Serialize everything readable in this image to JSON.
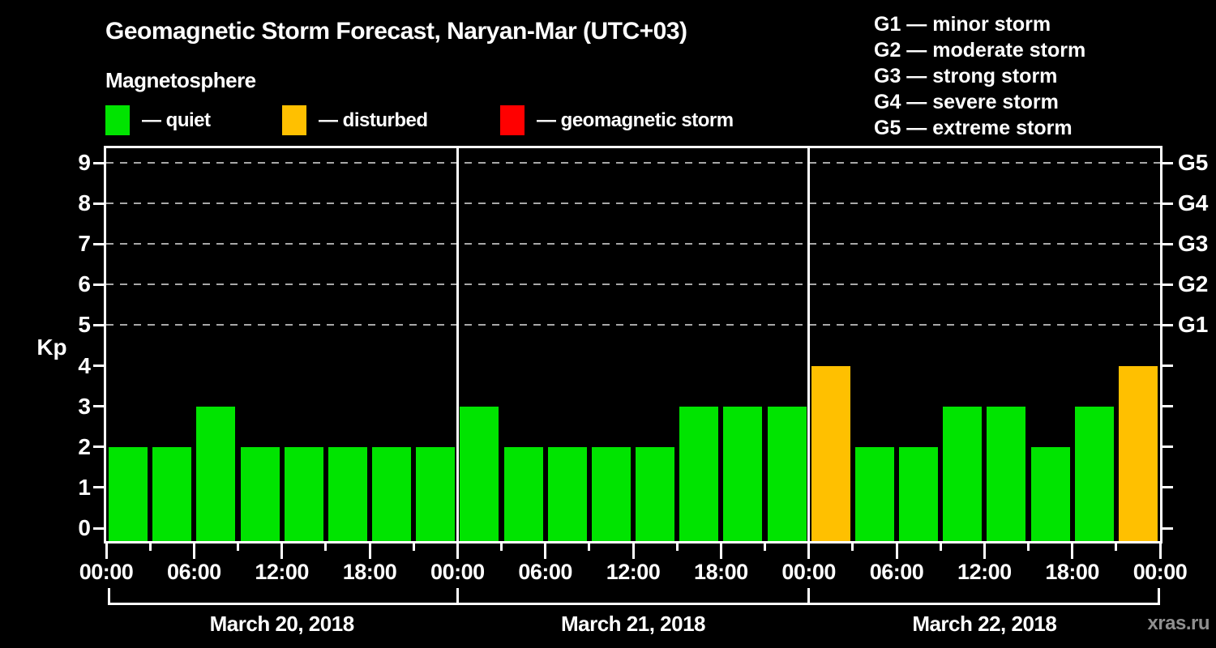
{
  "title": "Geomagnetic Storm Forecast, Naryan-Mar (UTC+03)",
  "subtitle": "Magnetosphere",
  "watermark": "xras.ru",
  "legend": {
    "items": [
      {
        "name": "quiet",
        "label": "— quiet",
        "color": "#00e400"
      },
      {
        "name": "disturbed",
        "label": "— disturbed",
        "color": "#ffc000"
      },
      {
        "name": "geomagnetic-storm",
        "label": "— geomagnetic storm",
        "color": "#ff0000"
      }
    ]
  },
  "storm_scale_legend": {
    "items": [
      "G1 — minor storm",
      "G2 — moderate storm",
      "G3 — strong storm",
      "G4 — severe storm",
      "G5 — extreme storm"
    ]
  },
  "chart_data": {
    "type": "bar",
    "title": "Geomagnetic Storm Forecast, Naryan-Mar (UTC+03)",
    "ylabel": "Kp",
    "ylim": [
      0,
      9
    ],
    "yticks": [
      0,
      1,
      2,
      3,
      4,
      5,
      6,
      7,
      8,
      9
    ],
    "gridlines_at": [
      5,
      6,
      7,
      8,
      9
    ],
    "grid": "dashed-horizontal",
    "legend_position": "top",
    "right_axis_labels": [
      {
        "label": "G1",
        "kp": 5
      },
      {
        "label": "G2",
        "kp": 6
      },
      {
        "label": "G3",
        "kp": 7
      },
      {
        "label": "G4",
        "kp": 8
      },
      {
        "label": "G5",
        "kp": 9
      }
    ],
    "hours_per_bar": 3,
    "x_tick_labels": [
      "00:00",
      "06:00",
      "12:00",
      "18:00",
      "00:00",
      "06:00",
      "12:00",
      "18:00",
      "00:00",
      "06:00",
      "12:00",
      "18:00",
      "00:00"
    ],
    "bar_colors": {
      "quiet": "#00e400",
      "disturbed": "#ffc000",
      "storm": "#ff0000"
    },
    "days": [
      {
        "date": "March 20, 2018",
        "values": [
          2,
          2,
          3,
          2,
          2,
          2,
          2,
          2
        ],
        "conditions": [
          "quiet",
          "quiet",
          "quiet",
          "quiet",
          "quiet",
          "quiet",
          "quiet",
          "quiet"
        ]
      },
      {
        "date": "March 21, 2018",
        "values": [
          3,
          2,
          2,
          2,
          2,
          3,
          3,
          3
        ],
        "conditions": [
          "quiet",
          "quiet",
          "quiet",
          "quiet",
          "quiet",
          "quiet",
          "quiet",
          "quiet"
        ]
      },
      {
        "date": "March 22, 2018",
        "values": [
          4,
          2,
          2,
          3,
          3,
          2,
          3,
          4
        ],
        "conditions": [
          "disturbed",
          "quiet",
          "quiet",
          "quiet",
          "quiet",
          "quiet",
          "quiet",
          "disturbed"
        ]
      }
    ]
  }
}
